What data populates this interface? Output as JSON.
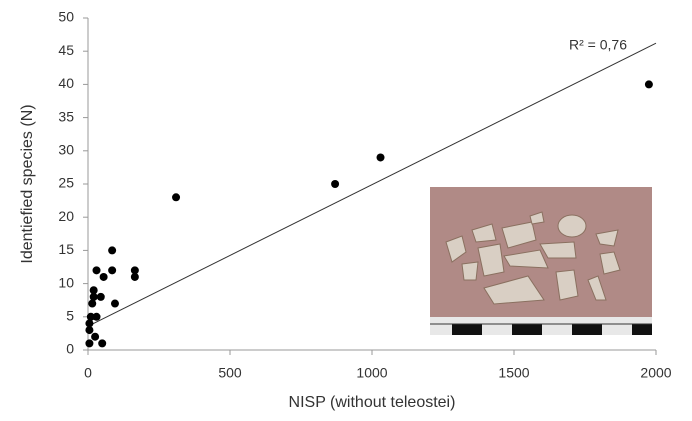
{
  "chart_data": {
    "type": "scatter",
    "x_label": "NISP (without teleostei)",
    "y_label": "Identiefied species (N)",
    "annotation": "R² = 0,76",
    "xlim": [
      0,
      2000
    ],
    "xticks": [
      0,
      500,
      1000,
      1500,
      2000
    ],
    "ylim": [
      0,
      50
    ],
    "yticks": [
      0,
      5,
      10,
      15,
      20,
      25,
      30,
      35,
      40,
      45,
      50
    ],
    "color": "#000000",
    "x": [
      1975,
      1030,
      870,
      310,
      165,
      165,
      85,
      85,
      95,
      30,
      55,
      45,
      20,
      20,
      15,
      10,
      30,
      5,
      5,
      25,
      50,
      5
    ],
    "y": [
      40,
      29,
      25,
      23,
      12,
      11,
      15,
      12,
      7,
      12,
      11,
      8,
      9,
      8,
      7,
      5,
      5,
      4,
      3,
      2,
      1,
      1
    ],
    "trendline": {
      "x": [
        10,
        2000
      ],
      "y": [
        3.8,
        46.2
      ],
      "color": "#333333"
    }
  }
}
